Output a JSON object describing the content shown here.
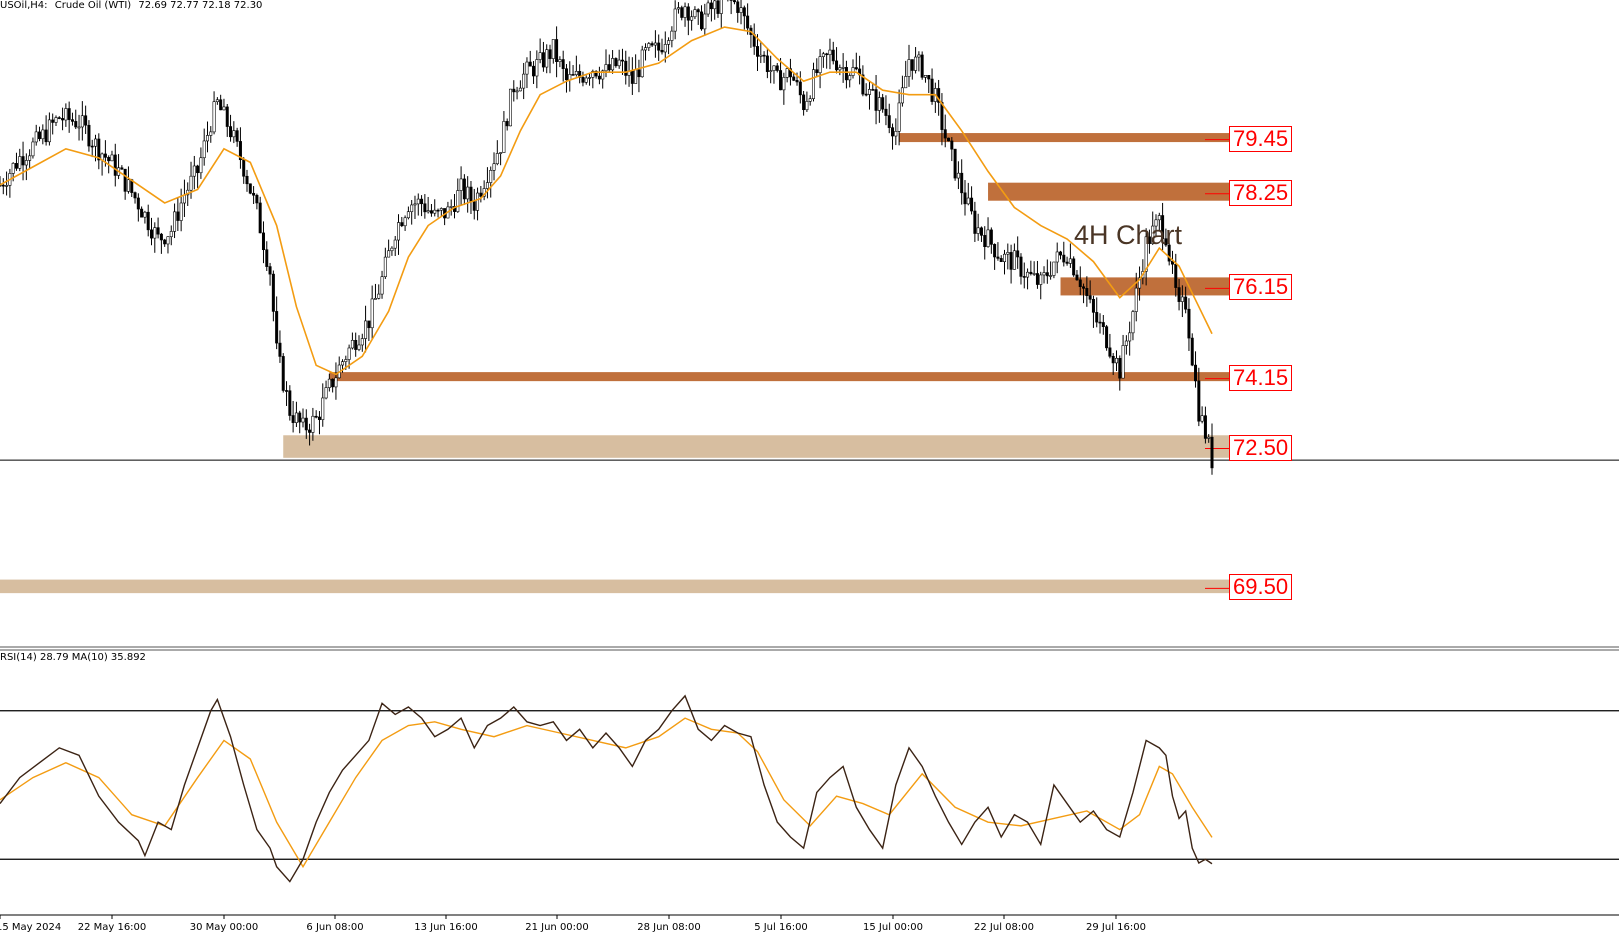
{
  "header": {
    "instrument": "USOil,H4:",
    "name": "Crude Oil (WTI)",
    "ohlc": "72.69 72.77 72.18 72.30"
  },
  "chart_title": "4H Chart",
  "rsi_header": "RSI(14) 28.79 MA(10) 35.892",
  "colors": {
    "candle": "#000000",
    "ma": "#f39c12",
    "zone_dark": "#c0703c",
    "zone_light": "#d7bea0",
    "rsi": "#3b2314",
    "rsi_ma": "#f39c12",
    "level_label": "#ff0000"
  },
  "chart_data": [
    {
      "type": "candlestick",
      "title": "",
      "ylim": [
        68.2,
        82.5
      ],
      "x_ticks": [
        "15 May 2024",
        "22 May 16:00",
        "30 May 00:00",
        "6 Jun 08:00",
        "13 Jun 16:00",
        "21 Jun 00:00",
        "28 Jun 08:00",
        "5 Jul 16:00",
        "15 Jul 00:00",
        "22 Jul 08:00",
        "29 Jul 16:00"
      ],
      "last_price": 72.3,
      "price_path": [
        [
          0,
          78.4
        ],
        [
          6,
          79.0
        ],
        [
          12,
          79.4
        ],
        [
          18,
          79.9
        ],
        [
          24,
          79.8
        ],
        [
          30,
          79.2
        ],
        [
          36,
          78.7
        ],
        [
          42,
          78.0
        ],
        [
          48,
          77.2
        ],
        [
          52,
          77.4
        ],
        [
          56,
          78.2
        ],
        [
          60,
          78.7
        ],
        [
          64,
          79.8
        ],
        [
          66,
          80.2
        ],
        [
          70,
          79.6
        ],
        [
          74,
          78.8
        ],
        [
          78,
          77.8
        ],
        [
          82,
          76.5
        ],
        [
          84,
          74.7
        ],
        [
          88,
          73.4
        ],
        [
          92,
          73.0
        ],
        [
          96,
          73.2
        ],
        [
          100,
          73.9
        ],
        [
          104,
          74.5
        ],
        [
          108,
          75.0
        ],
        [
          112,
          75.4
        ],
        [
          116,
          76.3
        ],
        [
          120,
          77.4
        ],
        [
          124,
          78.0
        ],
        [
          128,
          78.0
        ],
        [
          132,
          77.7
        ],
        [
          136,
          77.8
        ],
        [
          140,
          78.3
        ],
        [
          144,
          78.0
        ],
        [
          148,
          78.7
        ],
        [
          152,
          79.3
        ],
        [
          156,
          80.6
        ],
        [
          160,
          80.9
        ],
        [
          164,
          81.1
        ],
        [
          168,
          81.4
        ],
        [
          172,
          80.7
        ],
        [
          176,
          80.8
        ],
        [
          180,
          81.0
        ],
        [
          184,
          80.9
        ],
        [
          188,
          81.1
        ],
        [
          192,
          80.7
        ],
        [
          196,
          81.3
        ],
        [
          200,
          81.4
        ],
        [
          204,
          82.0
        ],
        [
          208,
          82.4
        ],
        [
          212,
          82.0
        ],
        [
          216,
          82.3
        ],
        [
          220,
          82.5
        ],
        [
          224,
          82.4
        ],
        [
          228,
          81.7
        ],
        [
          232,
          81.2
        ],
        [
          236,
          80.7
        ],
        [
          240,
          80.9
        ],
        [
          244,
          80.2
        ],
        [
          248,
          80.9
        ],
        [
          252,
          81.3
        ],
        [
          256,
          81.0
        ],
        [
          260,
          80.9
        ],
        [
          264,
          80.4
        ],
        [
          268,
          80.1
        ],
        [
          272,
          79.6
        ],
        [
          276,
          81.2
        ],
        [
          280,
          81.0
        ],
        [
          284,
          80.3
        ],
        [
          288,
          79.2
        ],
        [
          292,
          78.3
        ],
        [
          296,
          77.5
        ],
        [
          300,
          77.2
        ],
        [
          304,
          76.8
        ],
        [
          308,
          76.7
        ],
        [
          312,
          76.4
        ],
        [
          316,
          76.2
        ],
        [
          320,
          76.7
        ],
        [
          324,
          76.9
        ],
        [
          328,
          76.3
        ],
        [
          332,
          75.5
        ],
        [
          336,
          75.0
        ],
        [
          340,
          74.3
        ],
        [
          344,
          75.6
        ],
        [
          348,
          77.1
        ],
        [
          352,
          77.6
        ],
        [
          354,
          77.3
        ],
        [
          356,
          76.4
        ],
        [
          358,
          75.6
        ],
        [
          360,
          75.8
        ],
        [
          362,
          74.6
        ],
        [
          364,
          73.4
        ],
        [
          366,
          72.9
        ],
        [
          368,
          72.3
        ]
      ],
      "ma_path": [
        [
          0,
          78.4
        ],
        [
          10,
          78.8
        ],
        [
          20,
          79.2
        ],
        [
          30,
          79.0
        ],
        [
          40,
          78.5
        ],
        [
          50,
          78.0
        ],
        [
          60,
          78.3
        ],
        [
          68,
          79.2
        ],
        [
          76,
          78.9
        ],
        [
          84,
          77.5
        ],
        [
          90,
          75.7
        ],
        [
          96,
          74.4
        ],
        [
          102,
          74.2
        ],
        [
          110,
          74.6
        ],
        [
          118,
          75.6
        ],
        [
          124,
          76.8
        ],
        [
          130,
          77.5
        ],
        [
          138,
          77.9
        ],
        [
          146,
          78.1
        ],
        [
          152,
          78.6
        ],
        [
          158,
          79.6
        ],
        [
          164,
          80.4
        ],
        [
          172,
          80.7
        ],
        [
          180,
          80.9
        ],
        [
          190,
          80.9
        ],
        [
          200,
          81.1
        ],
        [
          210,
          81.6
        ],
        [
          220,
          81.9
        ],
        [
          228,
          81.8
        ],
        [
          236,
          81.2
        ],
        [
          244,
          80.7
        ],
        [
          252,
          80.9
        ],
        [
          260,
          80.9
        ],
        [
          268,
          80.5
        ],
        [
          276,
          80.4
        ],
        [
          284,
          80.4
        ],
        [
          292,
          79.6
        ],
        [
          300,
          78.7
        ],
        [
          308,
          77.9
        ],
        [
          316,
          77.5
        ],
        [
          324,
          77.2
        ],
        [
          332,
          76.7
        ],
        [
          340,
          75.9
        ],
        [
          346,
          76.3
        ],
        [
          352,
          77.0
        ],
        [
          358,
          76.6
        ],
        [
          362,
          76.0
        ],
        [
          368,
          75.1
        ]
      ],
      "zones": [
        {
          "label": "79.45",
          "low": 79.35,
          "high": 79.55,
          "from": 273,
          "style": "dark"
        },
        {
          "label": "78.25",
          "low": 78.05,
          "high": 78.45,
          "from": 300,
          "style": "dark"
        },
        {
          "label": "76.15",
          "low": 75.95,
          "high": 76.35,
          "from": 322,
          "style": "dark"
        },
        {
          "label": "74.15",
          "low": 74.05,
          "high": 74.25,
          "from": 100,
          "style": "dark"
        },
        {
          "label": "72.50",
          "low": 72.35,
          "high": 72.85,
          "from": 86,
          "style": "light"
        },
        {
          "label": "69.50",
          "low": 69.35,
          "high": 69.65,
          "from": 0,
          "style": "light"
        }
      ],
      "horizontal_line": 72.3
    },
    {
      "type": "line",
      "title": "",
      "ylim": [
        15,
        85
      ],
      "levels": [
        70,
        30
      ],
      "series": [
        {
          "values": [
            [
              0,
              45
            ],
            [
              6,
              52
            ],
            [
              12,
              56
            ],
            [
              18,
              60
            ],
            [
              24,
              58
            ],
            [
              30,
              47
            ],
            [
              36,
              40
            ],
            [
              42,
              35
            ],
            [
              44,
              31
            ],
            [
              48,
              40
            ],
            [
              52,
              38
            ],
            [
              56,
              50
            ],
            [
              60,
              60
            ],
            [
              64,
              70
            ],
            [
              66,
              73
            ],
            [
              70,
              63
            ],
            [
              74,
              50
            ],
            [
              78,
              38
            ],
            [
              82,
              33
            ],
            [
              84,
              28
            ],
            [
              88,
              24
            ],
            [
              92,
              30
            ],
            [
              96,
              40
            ],
            [
              100,
              48
            ],
            [
              104,
              54
            ],
            [
              108,
              58
            ],
            [
              112,
              62
            ],
            [
              116,
              72
            ],
            [
              120,
              69
            ],
            [
              124,
              71
            ],
            [
              128,
              68
            ],
            [
              132,
              63
            ],
            [
              136,
              65
            ],
            [
              140,
              68
            ],
            [
              144,
              60
            ],
            [
              148,
              66
            ],
            [
              152,
              68
            ],
            [
              156,
              71
            ],
            [
              160,
              67
            ],
            [
              164,
              66
            ],
            [
              168,
              67
            ],
            [
              172,
              62
            ],
            [
              176,
              65
            ],
            [
              180,
              60
            ],
            [
              184,
              64
            ],
            [
              188,
              60
            ],
            [
              192,
              55
            ],
            [
              196,
              62
            ],
            [
              200,
              65
            ],
            [
              204,
              70
            ],
            [
              208,
              74
            ],
            [
              212,
              65
            ],
            [
              216,
              62
            ],
            [
              220,
              66
            ],
            [
              224,
              64
            ],
            [
              228,
              63
            ],
            [
              232,
              50
            ],
            [
              236,
              40
            ],
            [
              240,
              36
            ],
            [
              244,
              33
            ],
            [
              248,
              48
            ],
            [
              252,
              52
            ],
            [
              256,
              55
            ],
            [
              260,
              44
            ],
            [
              264,
              38
            ],
            [
              268,
              33
            ],
            [
              272,
              50
            ],
            [
              276,
              60
            ],
            [
              280,
              55
            ],
            [
              284,
              47
            ],
            [
              288,
              40
            ],
            [
              292,
              34
            ],
            [
              296,
              40
            ],
            [
              300,
              44
            ],
            [
              304,
              36
            ],
            [
              308,
              42
            ],
            [
              312,
              40
            ],
            [
              316,
              34
            ],
            [
              320,
              50
            ],
            [
              324,
              45
            ],
            [
              328,
              40
            ],
            [
              332,
              43
            ],
            [
              336,
              38
            ],
            [
              340,
              36
            ],
            [
              344,
              48
            ],
            [
              348,
              62
            ],
            [
              352,
              60
            ],
            [
              354,
              58
            ],
            [
              356,
              47
            ],
            [
              358,
              41
            ],
            [
              360,
              43
            ],
            [
              362,
              33
            ],
            [
              364,
              29
            ],
            [
              366,
              30
            ],
            [
              368,
              28.8
            ]
          ]
        },
        {
          "values": [
            [
              0,
              46
            ],
            [
              10,
              52
            ],
            [
              20,
              56
            ],
            [
              30,
              52
            ],
            [
              40,
              42
            ],
            [
              50,
              39
            ],
            [
              60,
              52
            ],
            [
              68,
              62
            ],
            [
              76,
              57
            ],
            [
              84,
              40
            ],
            [
              92,
              28
            ],
            [
              100,
              40
            ],
            [
              108,
              52
            ],
            [
              116,
              62
            ],
            [
              124,
              66
            ],
            [
              132,
              67
            ],
            [
              140,
              65
            ],
            [
              150,
              63
            ],
            [
              160,
              66
            ],
            [
              170,
              64
            ],
            [
              180,
              62
            ],
            [
              190,
              60
            ],
            [
              200,
              63
            ],
            [
              208,
              68
            ],
            [
              216,
              65
            ],
            [
              224,
              64
            ],
            [
              230,
              59
            ],
            [
              238,
              46
            ],
            [
              246,
              39
            ],
            [
              254,
              47
            ],
            [
              262,
              45
            ],
            [
              270,
              42
            ],
            [
              280,
              53
            ],
            [
              290,
              44
            ],
            [
              300,
              40
            ],
            [
              310,
              39
            ],
            [
              320,
              41
            ],
            [
              330,
              43
            ],
            [
              340,
              38
            ],
            [
              346,
              42
            ],
            [
              352,
              55
            ],
            [
              356,
              53
            ],
            [
              362,
              44
            ],
            [
              368,
              35.9
            ]
          ]
        }
      ]
    }
  ]
}
